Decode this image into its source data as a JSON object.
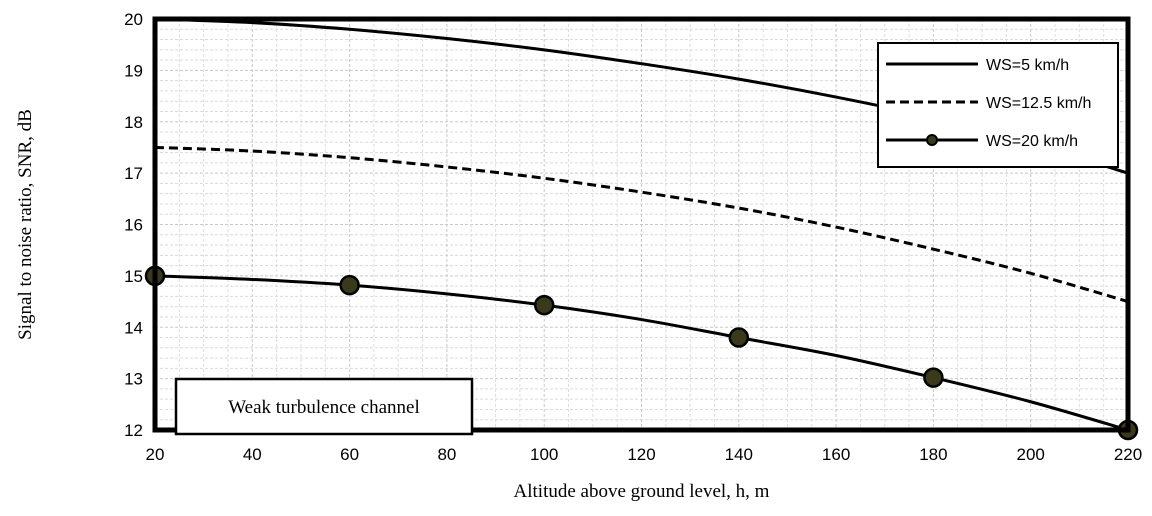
{
  "chart_data": {
    "type": "line",
    "title": "",
    "xlabel": "Altitude above ground level, h, m",
    "ylabel": "Signal to noise ratio, SNR, dB",
    "xlim": [
      20,
      220
    ],
    "ylim": [
      12,
      20
    ],
    "x_ticks": [
      20,
      40,
      60,
      80,
      100,
      120,
      140,
      160,
      180,
      200,
      220
    ],
    "y_ticks": [
      12,
      13,
      14,
      15,
      16,
      17,
      18,
      19,
      20
    ],
    "grid": true,
    "legend_position": "top-right",
    "annotation": "Weak turbulence channel",
    "series": [
      {
        "name": "WS=5 km/h",
        "style": "solid",
        "color": "#000000",
        "x": [
          20,
          40,
          60,
          80,
          100,
          120,
          140,
          160,
          180,
          200,
          220
        ],
        "y": [
          20.0,
          19.93,
          19.8,
          19.62,
          19.4,
          19.13,
          18.83,
          18.48,
          18.08,
          17.58,
          17.0
        ]
      },
      {
        "name": "WS=12.5 km/h",
        "style": "dashed",
        "color": "#000000",
        "x": [
          20,
          40,
          60,
          80,
          100,
          120,
          140,
          160,
          180,
          200,
          220
        ],
        "y": [
          17.5,
          17.43,
          17.3,
          17.12,
          16.9,
          16.63,
          16.32,
          15.95,
          15.52,
          15.05,
          14.5
        ]
      },
      {
        "name": "WS=20 km/h",
        "style": "solid",
        "marker": "circle",
        "color": "#000000",
        "marker_fill": "#3a3a1a",
        "x": [
          20,
          40,
          60,
          80,
          100,
          120,
          140,
          160,
          180,
          200,
          220
        ],
        "y": [
          15.0,
          14.93,
          14.82,
          14.65,
          14.43,
          14.15,
          13.8,
          13.45,
          13.02,
          12.55,
          12.0
        ],
        "marker_x": [
          20,
          60,
          100,
          140,
          180,
          220
        ],
        "marker_y": [
          15.0,
          14.82,
          14.43,
          13.8,
          13.02,
          12.0
        ]
      }
    ]
  }
}
